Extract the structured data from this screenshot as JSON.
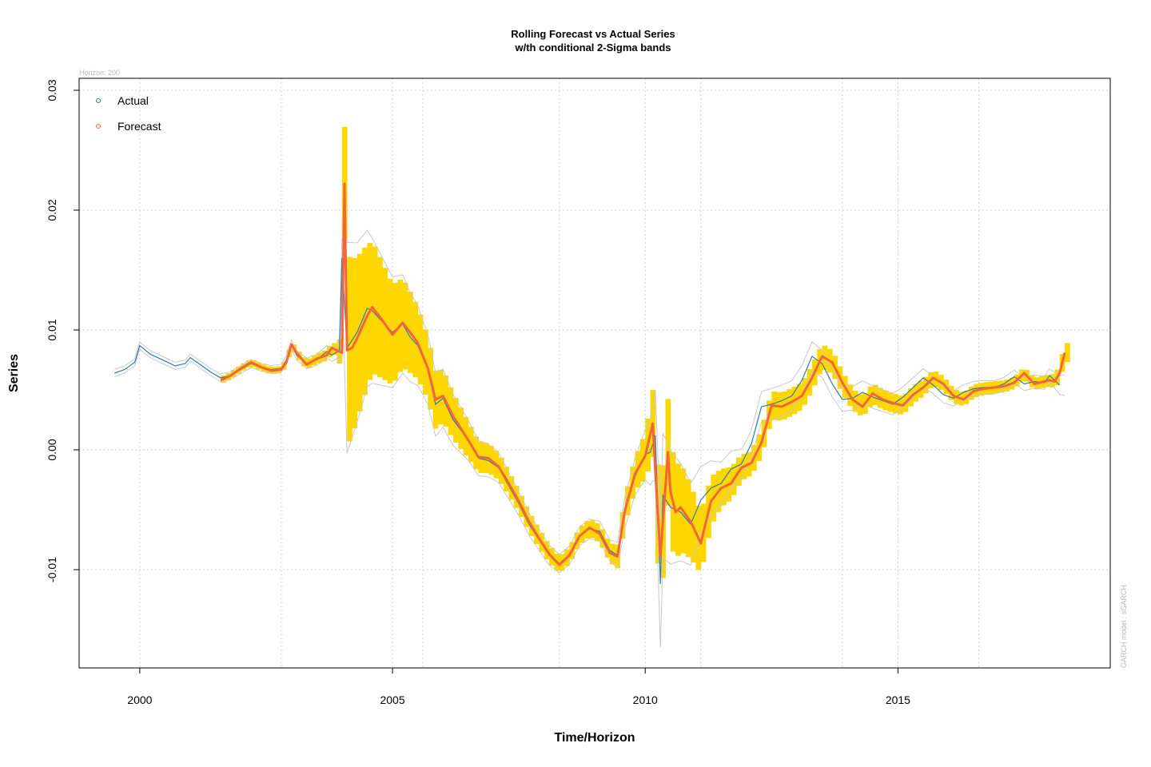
{
  "chart_data": {
    "type": "line",
    "title": "Rolling Forecast vs Actual Series",
    "subtitle": "w/th conditional 2-Sigma bands",
    "xlabel": "Time/Horizon",
    "ylabel": "Series",
    "horizon_note": "Horizon: 200",
    "model_note": "GARCH model :  sGARCH",
    "xlim": [
      1998.8,
      2019.2
    ],
    "ylim": [
      -0.0182,
      0.031
    ],
    "x_ticks": [
      2000,
      2005,
      2010,
      2015
    ],
    "x_tick_labels": [
      "2000",
      "2005",
      "2010",
      "2015"
    ],
    "y_ticks": [
      -0.01,
      0.0,
      0.01,
      0.02,
      0.03
    ],
    "y_tick_labels": [
      "-0.01",
      "0.00",
      "0.01",
      "0.02",
      "0.03"
    ],
    "vertical_grid_x": [
      2000,
      2002.8,
      2005,
      2005.6,
      2008.3,
      2010,
      2011.1,
      2013.9,
      2015,
      2016.6
    ],
    "grid": true,
    "legend_position": "top-left",
    "legend": [
      {
        "label": "Actual",
        "color": "#2f7bb5"
      },
      {
        "label": "Forecast",
        "color": "#f26835"
      }
    ],
    "colors": {
      "actual": "#2f7bb5",
      "forecast": "#f4663a",
      "band": "#ffd700",
      "band_outline": "#c8c8c8",
      "grid": "#d3d3d3"
    },
    "band_start": 2001.6,
    "series": [
      {
        "name": "Actual",
        "x": [
          1999.5,
          1999.7,
          1999.9,
          2000.0,
          2000.2,
          2000.5,
          2000.7,
          2000.9,
          2001.0,
          2001.2,
          2001.4,
          2001.6,
          2001.8,
          2002.0,
          2002.2,
          2002.4,
          2002.6,
          2002.8,
          2002.9,
          2003.0,
          2003.1,
          2003.3,
          2003.5,
          2003.7,
          2003.8,
          2003.95,
          2004.0,
          2004.1,
          2004.3,
          2004.5,
          2004.6,
          2004.8,
          2005.0,
          2005.2,
          2005.35,
          2005.5,
          2005.7,
          2005.85,
          2006.0,
          2006.2,
          2006.5,
          2006.7,
          2006.9,
          2007.1,
          2007.3,
          2007.5,
          2007.7,
          2007.9,
          2008.1,
          2008.3,
          2008.5,
          2008.7,
          2008.9,
          2009.1,
          2009.3,
          2009.45,
          2009.6,
          2009.8,
          2010.0,
          2010.1,
          2010.2,
          2010.3,
          2010.35,
          2010.5,
          2010.7,
          2010.9,
          2011.1,
          2011.3,
          2011.5,
          2011.7,
          2011.9,
          2012.1,
          2012.3,
          2012.5,
          2012.7,
          2012.9,
          2013.1,
          2013.3,
          2013.5,
          2013.7,
          2013.9,
          2014.1,
          2014.3,
          2014.5,
          2014.7,
          2014.9,
          2015.1,
          2015.3,
          2015.5,
          2015.7,
          2015.9,
          2016.1,
          2016.3,
          2016.5,
          2016.7,
          2016.9,
          2017.1,
          2017.3,
          2017.5,
          2017.7,
          2017.9,
          2018.0,
          2018.2
        ],
        "y": [
          0.0064,
          0.0067,
          0.0073,
          0.0087,
          0.008,
          0.0074,
          0.007,
          0.0072,
          0.0077,
          0.0071,
          0.0065,
          0.006,
          0.0062,
          0.0067,
          0.0072,
          0.0069,
          0.0067,
          0.0068,
          0.0075,
          0.0088,
          0.0079,
          0.0072,
          0.0075,
          0.0082,
          0.0079,
          0.0083,
          0.016,
          0.0085,
          0.0098,
          0.0118,
          0.0116,
          0.0107,
          0.0098,
          0.0105,
          0.0094,
          0.0087,
          0.0067,
          0.0038,
          0.0043,
          0.0025,
          0.0008,
          -0.0007,
          -0.0009,
          -0.0015,
          -0.003,
          -0.0045,
          -0.0062,
          -0.0075,
          -0.0088,
          -0.0095,
          -0.0088,
          -0.0072,
          -0.0066,
          -0.0068,
          -0.0084,
          -0.0088,
          -0.0052,
          -0.0022,
          -0.0004,
          -0.0002,
          0.0012,
          -0.0112,
          -0.0038,
          -0.0048,
          -0.0052,
          -0.0062,
          -0.0042,
          -0.0032,
          -0.0028,
          -0.0016,
          -0.0012,
          0.0005,
          0.0036,
          0.0038,
          0.0041,
          0.0045,
          0.0058,
          0.0078,
          0.0072,
          0.0055,
          0.0042,
          0.0043,
          0.0048,
          0.0044,
          0.0041,
          0.0038,
          0.0044,
          0.0052,
          0.006,
          0.0054,
          0.0046,
          0.0043,
          0.0048,
          0.0051,
          0.0052,
          0.0052,
          0.0055,
          0.0061,
          0.0055,
          0.0057,
          0.0056,
          0.0062,
          0.0054
        ]
      },
      {
        "name": "Forecast",
        "x": [
          2001.6,
          2001.8,
          2002.0,
          2002.2,
          2002.4,
          2002.6,
          2002.8,
          2002.9,
          2003.0,
          2003.1,
          2003.3,
          2003.5,
          2003.7,
          2003.8,
          2003.95,
          2004.0,
          2004.05,
          2004.1,
          2004.2,
          2004.3,
          2004.5,
          2004.6,
          2004.8,
          2005.0,
          2005.2,
          2005.35,
          2005.5,
          2005.7,
          2005.85,
          2006.0,
          2006.2,
          2006.5,
          2006.7,
          2006.9,
          2007.1,
          2007.3,
          2007.5,
          2007.7,
          2007.9,
          2008.1,
          2008.3,
          2008.5,
          2008.7,
          2008.9,
          2009.1,
          2009.3,
          2009.45,
          2009.6,
          2009.8,
          2010.0,
          2010.15,
          2010.2,
          2010.3,
          2010.35,
          2010.45,
          2010.5,
          2010.6,
          2010.7,
          2010.9,
          2011.1,
          2011.3,
          2011.5,
          2011.7,
          2011.9,
          2012.1,
          2012.3,
          2012.5,
          2012.7,
          2012.9,
          2013.1,
          2013.3,
          2013.5,
          2013.7,
          2013.9,
          2014.1,
          2014.3,
          2014.5,
          2014.7,
          2014.9,
          2015.1,
          2015.3,
          2015.5,
          2015.7,
          2015.9,
          2016.1,
          2016.3,
          2016.5,
          2016.7,
          2016.9,
          2017.1,
          2017.3,
          2017.5,
          2017.7,
          2017.9,
          2018.0,
          2018.1,
          2018.2,
          2018.3
        ],
        "y": [
          0.0058,
          0.0062,
          0.0068,
          0.0073,
          0.0069,
          0.0066,
          0.0067,
          0.0073,
          0.0088,
          0.0081,
          0.0071,
          0.0076,
          0.0079,
          0.0085,
          0.0082,
          0.0081,
          0.0222,
          0.0083,
          0.0085,
          0.0093,
          0.0112,
          0.0119,
          0.0108,
          0.0096,
          0.0106,
          0.0098,
          0.0089,
          0.0068,
          0.0042,
          0.0045,
          0.0028,
          0.0008,
          -0.0006,
          -0.0007,
          -0.0014,
          -0.0028,
          -0.0043,
          -0.006,
          -0.0074,
          -0.0087,
          -0.0096,
          -0.0088,
          -0.0072,
          -0.0065,
          -0.007,
          -0.0086,
          -0.0089,
          -0.005,
          -0.002,
          -0.0005,
          0.0022,
          -0.0018,
          -0.0089,
          -0.006,
          -0.0002,
          -0.0035,
          -0.0052,
          -0.0048,
          -0.006,
          -0.0078,
          -0.0043,
          -0.0032,
          -0.0028,
          -0.0015,
          -0.0011,
          0.0006,
          0.0037,
          0.0036,
          0.004,
          0.0045,
          0.006,
          0.0078,
          0.0073,
          0.0056,
          0.0042,
          0.0036,
          0.0047,
          0.0042,
          0.0039,
          0.0037,
          0.0046,
          0.0052,
          0.006,
          0.0055,
          0.0045,
          0.0042,
          0.0049,
          0.0051,
          0.0052,
          0.0053,
          0.0056,
          0.0064,
          0.0055,
          0.0057,
          0.0058,
          0.0057,
          0.0064,
          0.0081
        ]
      }
    ],
    "band_sigma": {
      "x": [
        2001.6,
        2002.8,
        2003.9,
        2004.0,
        2004.1,
        2004.3,
        2004.6,
        2005.0,
        2005.6,
        2006.0,
        2006.6,
        2007.5,
        2008.3,
        2008.7,
        2009.3,
        2009.8,
        2010.0,
        2010.15,
        2010.3,
        2010.4,
        2010.6,
        2011.0,
        2011.5,
        2012.0,
        2012.2,
        2012.5,
        2013.3,
        2013.6,
        2014.0,
        2015.0,
        2016.0,
        2017.0,
        2018.0,
        2018.3
      ],
      "y": [
        0.0003,
        0.0003,
        0.0005,
        0.0015,
        0.008,
        0.0068,
        0.0055,
        0.0042,
        0.0028,
        0.0022,
        0.0014,
        0.0009,
        0.0007,
        0.0007,
        0.0008,
        0.0014,
        0.0019,
        0.0028,
        0.0048,
        0.0046,
        0.004,
        0.0028,
        0.0016,
        0.001,
        0.0011,
        0.0012,
        0.0011,
        0.001,
        0.0009,
        0.0008,
        0.0006,
        0.0005,
        0.0005,
        0.0008
      ]
    }
  }
}
